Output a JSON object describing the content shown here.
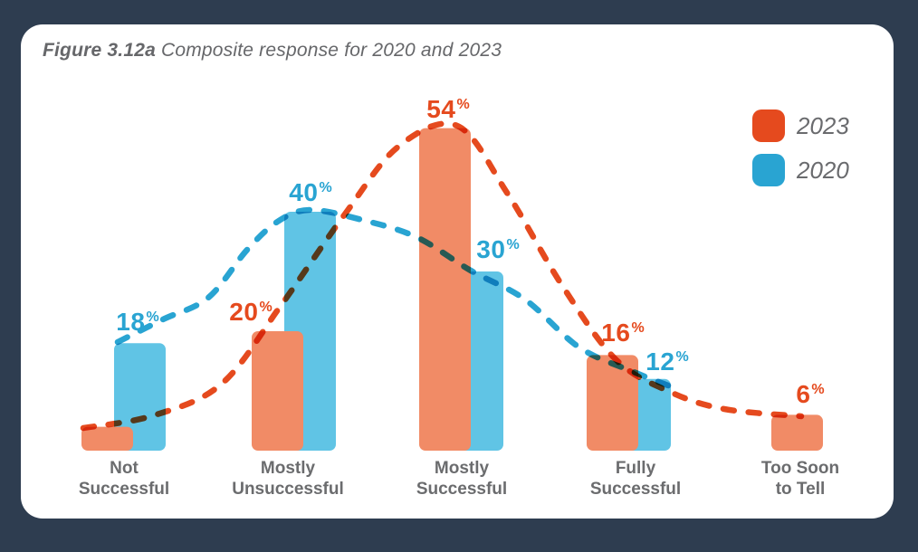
{
  "page": {
    "background_color": "#2E3D50",
    "card_color": "#FFFFFF"
  },
  "figure_title": {
    "prefix": "Figure 3.12a",
    "rest": "Composite response for 2020 and 2023"
  },
  "legend": {
    "position": "top-right",
    "items": [
      {
        "label": "2023",
        "color": "#E54A1E"
      },
      {
        "label": "2020",
        "color": "#29A4D2"
      }
    ]
  },
  "chart_data": {
    "type": "bar",
    "unit": "%",
    "title": "Figure 3.12a Composite response for 2020 and 2023",
    "categories": [
      "Not Successful",
      "Mostly Unsuccessful",
      "Mostly Successful",
      "Fully Successful",
      "Too Soon to Tell"
    ],
    "categories_lines": [
      [
        "Not",
        "Successful"
      ],
      [
        "Mostly",
        "Unsuccessful"
      ],
      [
        "Mostly",
        "Successful"
      ],
      [
        "Fully",
        "Successful"
      ],
      [
        "Too Soon",
        "to Tell"
      ]
    ],
    "series": [
      {
        "name": "2023",
        "bar_color": "#F18B66",
        "line_color": "#E54A1E",
        "label_color": "#E54A1E",
        "values": [
          4,
          20,
          54,
          16,
          6
        ],
        "value_labels": [
          "",
          "20",
          "54",
          "16",
          "6"
        ]
      },
      {
        "name": "2020",
        "bar_color": "#60C4E5",
        "line_color": "#29A4D2",
        "label_color": "#29A4D2",
        "values": [
          18,
          40,
          30,
          12,
          null
        ],
        "value_labels": [
          "18",
          "40",
          "30",
          "12",
          ""
        ]
      }
    ],
    "ylim": [
      0,
      60
    ],
    "axes": "none (value labels shown above bars)",
    "grid": false,
    "trend_lines": "dashed bell curve per series, multiply-blended over bars",
    "legend_position": "top-right"
  }
}
